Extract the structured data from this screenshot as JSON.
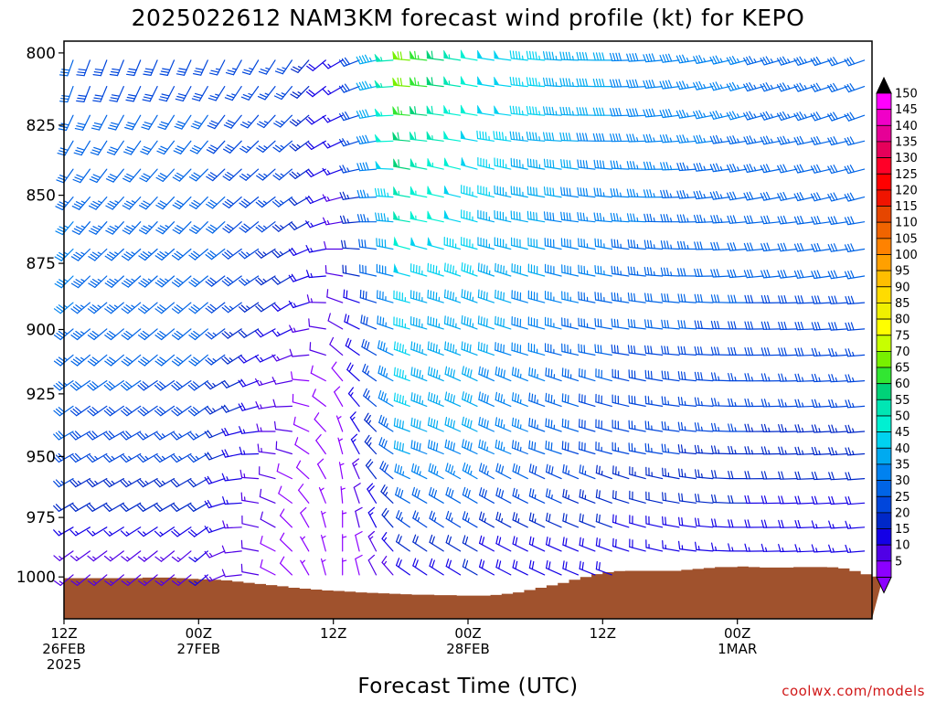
{
  "chart_data": {
    "type": "wind-barb-profile",
    "title": "2025022612 NAM3KM forecast wind profile (kt) for KEPO",
    "xlabel": "Forecast Time (UTC)",
    "ylabel": "",
    "credit": "coolwx.com/models",
    "y_scale": "log-pressure",
    "y_inverted": true,
    "ylim_hpa": [
      1018,
      796
    ],
    "xlim_hours": [
      0,
      72
    ],
    "y_ticks": [
      {
        "value": 800,
        "label": "800"
      },
      {
        "value": 825,
        "label": "825"
      },
      {
        "value": 850,
        "label": "850"
      },
      {
        "value": 875,
        "label": "875"
      },
      {
        "value": 900,
        "label": "900"
      },
      {
        "value": 925,
        "label": "925"
      },
      {
        "value": 950,
        "label": "950"
      },
      {
        "value": 975,
        "label": "975"
      },
      {
        "value": 1000,
        "label": "1000"
      }
    ],
    "x_ticks": [
      {
        "hour": 0,
        "lines": [
          "12Z",
          "26FEB",
          "2025"
        ]
      },
      {
        "hour": 12,
        "lines": [
          "00Z",
          "27FEB"
        ]
      },
      {
        "hour": 24,
        "lines": [
          "12Z"
        ]
      },
      {
        "hour": 36,
        "lines": [
          "00Z",
          "28FEB"
        ]
      },
      {
        "hour": 48,
        "lines": [
          "12Z"
        ]
      },
      {
        "hour": 60,
        "lines": [
          "00Z",
          "1MAR"
        ]
      }
    ],
    "colorbar": {
      "labels": [
        "150",
        "145",
        "140",
        "135",
        "130",
        "125",
        "120",
        "115",
        "110",
        "105",
        "100",
        "95",
        "90",
        "85",
        "80",
        "75",
        "70",
        "65",
        "60",
        "55",
        "50",
        "45",
        "40",
        "35",
        "30",
        "25",
        "20",
        "15",
        "10",
        "5"
      ],
      "colors": [
        "#ff00ff",
        "#f000c8",
        "#e60096",
        "#e6005a",
        "#ff0028",
        "#ff0000",
        "#f01400",
        "#e64600",
        "#f06400",
        "#ff8200",
        "#ffa000",
        "#ffbe00",
        "#ffdc00",
        "#f0f000",
        "#ffff00",
        "#c8ff00",
        "#78f000",
        "#32e632",
        "#00d278",
        "#00e6b4",
        "#00f0d2",
        "#00d2f0",
        "#00aaf0",
        "#0082f0",
        "#0064e6",
        "#0046dc",
        "#0028c8",
        "#1400e6",
        "#5000e6",
        "#8c00ff"
      ]
    },
    "surface_pressure_hpa": [
      1000.5,
      1000.5,
      1000.5,
      1000.5,
      1000.5,
      1000.5,
      1000.5,
      1000.3,
      1000.3,
      1000.3,
      1000.5,
      1000.8,
      1001.0,
      1001.2,
      1001.5,
      1002.0,
      1002.5,
      1003.0,
      1003.5,
      1004.0,
      1004.6,
      1005.0,
      1005.4,
      1005.8,
      1006.0,
      1006.3,
      1006.6,
      1006.8,
      1007.0,
      1007.2,
      1007.4,
      1007.6,
      1007.6,
      1007.8,
      1007.8,
      1008.0,
      1008.0,
      1008.0,
      1007.7,
      1007.2,
      1006.6,
      1005.6,
      1004.6,
      1003.6,
      1002.6,
      1001.2,
      1000.0,
      998.8,
      998.0,
      997.5,
      997.4,
      997.4,
      997.4,
      997.4,
      997.4,
      997.0,
      996.6,
      996.2,
      995.8,
      995.8,
      995.6,
      995.8,
      996.0,
      996.0,
      996.0,
      995.8,
      995.8,
      995.8,
      995.9,
      996.4,
      997.5,
      998.9,
      999.8
    ],
    "levels_hpa": [
      800,
      809,
      819,
      828,
      838,
      848,
      857,
      867,
      877,
      887,
      897,
      907,
      917,
      927,
      937,
      946,
      956,
      966,
      976,
      986,
      996
    ],
    "wind_samples": [
      {
        "hour": 0,
        "dir_deg": [
          200,
          200,
          205,
          210,
          215,
          220,
          220,
          225,
          225,
          230,
          230,
          230,
          235,
          235,
          240,
          240,
          240,
          240,
          240,
          235,
          230
        ],
        "spd_kt": [
          30,
          30,
          30,
          30,
          32,
          33,
          35,
          35,
          35,
          35,
          33,
          33,
          33,
          30,
          30,
          28,
          25,
          20,
          15,
          13,
          13
        ]
      },
      {
        "hour": 12,
        "dir_deg": [
          205,
          210,
          215,
          220,
          225,
          225,
          225,
          230,
          230,
          230,
          230,
          230,
          235,
          235,
          240,
          240,
          240,
          240,
          235,
          230,
          230
        ],
        "spd_kt": [
          28,
          28,
          30,
          30,
          30,
          32,
          32,
          32,
          32,
          30,
          30,
          30,
          28,
          28,
          25,
          25,
          22,
          20,
          18,
          15,
          15
        ]
      },
      {
        "hour": 20,
        "dir_deg": [
          215,
          220,
          225,
          230,
          230,
          235,
          235,
          240,
          240,
          240,
          245,
          250,
          260,
          270,
          280,
          290,
          300,
          310,
          320,
          320,
          320
        ],
        "spd_kt": [
          25,
          25,
          25,
          25,
          25,
          25,
          24,
          22,
          20,
          18,
          14,
          12,
          10,
          10,
          10,
          9,
          9,
          8,
          8,
          7,
          7
        ]
      },
      {
        "hour": 24,
        "dir_deg": [
          240,
          240,
          245,
          245,
          250,
          255,
          260,
          270,
          280,
          290,
          300,
          310,
          320,
          330,
          340,
          345,
          350,
          355,
          0,
          0,
          0
        ],
        "spd_kt": [
          15,
          15,
          15,
          15,
          15,
          14,
          13,
          12,
          12,
          10,
          10,
          10,
          9,
          8,
          7,
          7,
          7,
          6,
          6,
          5,
          5
        ]
      },
      {
        "hour": 30,
        "dir_deg": [
          275,
          275,
          275,
          275,
          280,
          280,
          280,
          285,
          285,
          285,
          285,
          290,
          290,
          290,
          290,
          290,
          295,
          300,
          305,
          305,
          305
        ],
        "spd_kt": [
          70,
          70,
          65,
          62,
          60,
          57,
          55,
          50,
          48,
          45,
          45,
          45,
          45,
          45,
          42,
          40,
          35,
          30,
          25,
          20,
          18
        ]
      },
      {
        "hour": 36,
        "dir_deg": [
          280,
          280,
          280,
          280,
          285,
          285,
          285,
          285,
          290,
          290,
          290,
          290,
          295,
          295,
          295,
          295,
          300,
          300,
          300,
          300,
          300
        ],
        "spd_kt": [
          50,
          50,
          50,
          48,
          48,
          47,
          46,
          45,
          45,
          43,
          43,
          42,
          40,
          40,
          40,
          38,
          35,
          30,
          25,
          20,
          20
        ]
      },
      {
        "hour": 48,
        "dir_deg": [
          270,
          270,
          270,
          270,
          275,
          275,
          275,
          280,
          280,
          280,
          280,
          280,
          285,
          285,
          285,
          285,
          290,
          290,
          290,
          290,
          290
        ],
        "spd_kt": [
          40,
          40,
          40,
          38,
          38,
          37,
          36,
          35,
          35,
          33,
          32,
          30,
          30,
          28,
          28,
          26,
          24,
          22,
          20,
          18,
          18
        ]
      },
      {
        "hour": 60,
        "dir_deg": [
          255,
          255,
          255,
          260,
          260,
          260,
          265,
          265,
          265,
          270,
          270,
          270,
          270,
          270,
          270,
          270,
          270,
          270,
          270,
          270,
          270
        ],
        "spd_kt": [
          35,
          35,
          35,
          34,
          33,
          32,
          32,
          31,
          30,
          30,
          29,
          28,
          27,
          26,
          25,
          24,
          22,
          20,
          18,
          16,
          15
        ]
      },
      {
        "hour": 72,
        "dir_deg": [
          250,
          250,
          250,
          255,
          255,
          255,
          260,
          260,
          260,
          265,
          265,
          265,
          265,
          265,
          265,
          265,
          265,
          265,
          265,
          265,
          265
        ],
        "spd_kt": [
          30,
          30,
          30,
          30,
          30,
          30,
          30,
          30,
          30,
          29,
          28,
          27,
          26,
          25,
          24,
          23,
          21,
          19,
          17,
          15,
          15
        ]
      }
    ]
  }
}
